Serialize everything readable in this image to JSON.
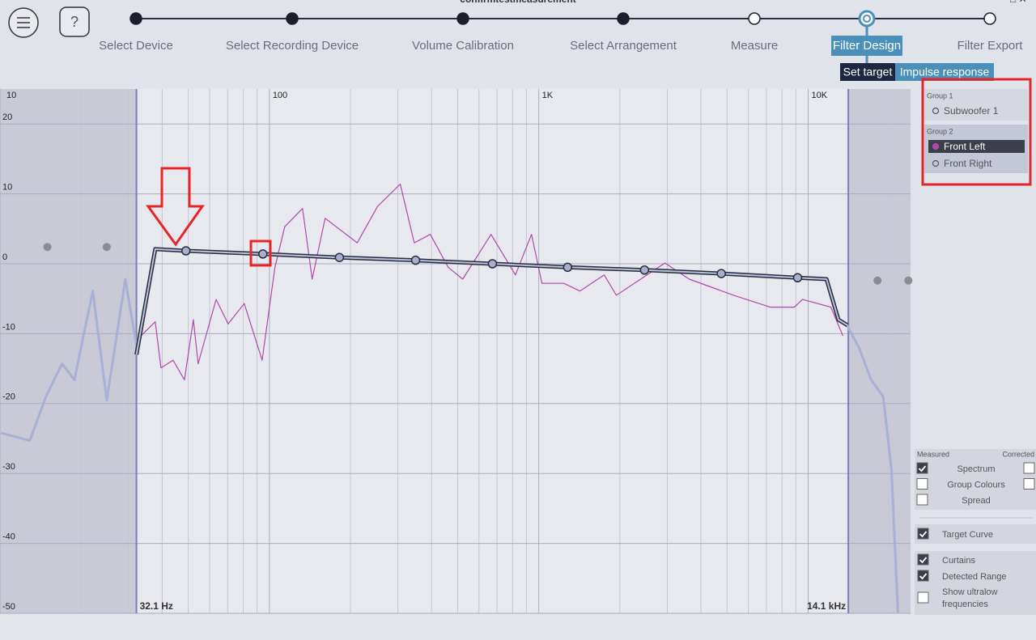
{
  "header": {
    "title": "confirmtestmeasurement",
    "help": "?",
    "steps": [
      {
        "label": "Select Device",
        "state": "done"
      },
      {
        "label": "Select Recording Device",
        "state": "done"
      },
      {
        "label": "Volume Calibration",
        "state": "done"
      },
      {
        "label": "Select Arrangement",
        "state": "done"
      },
      {
        "label": "Measure",
        "state": "todo"
      },
      {
        "label": "Filter Design",
        "state": "current"
      },
      {
        "label": "Filter Export",
        "state": "todo"
      }
    ]
  },
  "tabs": [
    {
      "label": "Set target",
      "active": true
    },
    {
      "label": "Impulse response",
      "active": false
    }
  ],
  "groups": [
    {
      "name": "Group 1",
      "items": [
        {
          "label": "Subwoofer 1",
          "selected": false
        }
      ]
    },
    {
      "name": "Group 2",
      "items": [
        {
          "label": "Front Left",
          "selected": true
        },
        {
          "label": "Front Right",
          "selected": false
        }
      ]
    }
  ],
  "display": {
    "measured_label": "Measured",
    "corrected_label": "Corrected",
    "rows": [
      {
        "label": "Spectrum",
        "measured": true,
        "corrected": false
      },
      {
        "label": "Group Colours",
        "measured": false,
        "corrected": false
      },
      {
        "label": "Spread",
        "measured": false
      }
    ]
  },
  "options": [
    [
      {
        "label": "Target Curve",
        "checked": true
      }
    ],
    [
      {
        "label": "Curtains",
        "checked": true
      },
      {
        "label": "Detected Range",
        "checked": true
      },
      {
        "label": "Show ultralow frequencies",
        "checked": false
      }
    ]
  ],
  "chart": {
    "xscale": "log",
    "xlim": [
      10,
      24000
    ],
    "ylim": [
      -50,
      25
    ],
    "xticks": [
      {
        "value": 10,
        "label": "10"
      },
      100,
      {
        "value": 1000,
        "label": "1K"
      },
      {
        "value": 10000,
        "label": "10K"
      }
    ],
    "minor_xticks": [
      20,
      30,
      40,
      50,
      60,
      70,
      80,
      90,
      200,
      300,
      400,
      500,
      600,
      700,
      800,
      900,
      2000,
      3000,
      4000,
      5000,
      6000,
      7000,
      8000,
      9000,
      20000
    ],
    "yticks": [
      20,
      10,
      0,
      -10,
      -20,
      -30,
      -40,
      -50
    ],
    "curtains": [
      {
        "value": 32.1,
        "label": "32.1 Hz"
      },
      {
        "value": 14100,
        "label": "14.1 kHz"
      }
    ],
    "extended": {
      "color": "#a9b0d6",
      "x": [
        10.1,
        12.9,
        14.8,
        17.0,
        18.9,
        22.1,
        24.9,
        29.2,
        32.2,
        null,
        13930,
        15450,
        17140,
        19000,
        20380,
        21540
      ],
      "values": [
        -24.2,
        -25.3,
        -19.0,
        -14.3,
        -16.6,
        -3.9,
        -19.5,
        -2.2,
        -12.0,
        null,
        -8.8,
        -12.0,
        -16.6,
        -19.0,
        -29.4,
        -49.9
      ]
    },
    "measured": {
      "color": "#b04aa8",
      "x": [
        32.2,
        37.7,
        39.6,
        43.9,
        48.4,
        52.2,
        54.4,
        63.4,
        70.3,
        80.7,
        94.0,
        104.9,
        114,
        132.8,
        144.2,
        161,
        212,
        252,
        306,
        345,
        396,
        461,
        522,
        665,
        819,
        940,
        1028,
        1239,
        1422,
        1750,
        1941,
        2940,
        3620,
        5290,
        7230,
        8890,
        9530,
        12140,
        13460
      ],
      "values": [
        -10.9,
        -8.3,
        -14.9,
        -13.8,
        -16.6,
        -8.0,
        -14.3,
        -5.1,
        -8.6,
        -5.7,
        -13.8,
        -0.5,
        5.3,
        7.9,
        -2.2,
        6.5,
        3.0,
        8.2,
        11.4,
        3.0,
        4.2,
        -0.5,
        -2.2,
        4.2,
        -1.6,
        4.2,
        -2.8,
        -2.8,
        -3.9,
        -1.6,
        -4.5,
        0.1,
        -2.2,
        -4.5,
        -6.2,
        -6.2,
        -5.1,
        -6.2,
        -10.3
      ]
    },
    "target": {
      "color": "#b8bfe0",
      "outline": "#2a2d3a",
      "x": [
        32.1,
        37.7,
        49,
        94.6,
        182,
        349,
        673,
        1280,
        2470,
        4760,
        9140,
        11700,
        12960,
        14000
      ],
      "values": [
        -13,
        2.1,
        1.85,
        1.4,
        0.9,
        0.5,
        0,
        -0.5,
        -0.9,
        -1.4,
        -2.0,
        -2.2,
        -8,
        -8.8
      ]
    },
    "control_points": {
      "x": [
        49,
        94.6,
        182,
        349,
        673,
        1280,
        2470,
        4760,
        9140
      ],
      "values": [
        1.85,
        1.4,
        0.9,
        0.5,
        0,
        -0.5,
        -0.9,
        -1.4,
        -2.0
      ]
    },
    "inactive_points": {
      "x": [
        15.0,
        24.9,
        18100,
        23560
      ],
      "values": [
        2.4,
        2.4,
        -2.4,
        -2.4
      ]
    }
  }
}
